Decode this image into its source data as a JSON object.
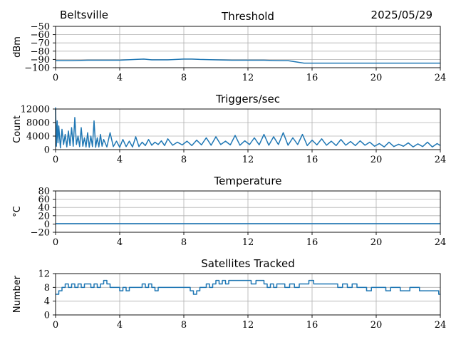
{
  "header": {
    "station": "Beltsville",
    "date": "2025/05/29"
  },
  "colors": {
    "line": "#1f77b4",
    "grid": "#b0b0b0",
    "axis": "#000000"
  },
  "chart_data": [
    {
      "type": "line",
      "title": "Threshold",
      "xlabel": "",
      "ylabel": "dBm",
      "xlim": [
        0,
        24
      ],
      "ylim": [
        -100,
        -50
      ],
      "xticks": [
        0,
        4,
        8,
        12,
        16,
        20,
        24
      ],
      "yticks": [
        -50,
        -60,
        -70,
        -80,
        -90,
        -100
      ],
      "grid": true,
      "series": [
        {
          "x": [
            0,
            1,
            2,
            3,
            4,
            5,
            5.5,
            6,
            7,
            8,
            8.5,
            9,
            10,
            11,
            12,
            13,
            14,
            14.5,
            15,
            15.5,
            16,
            17,
            18,
            19,
            20,
            21,
            22,
            23,
            24
          ],
          "y": [
            -91.5,
            -91.5,
            -91,
            -91,
            -91,
            -90,
            -89.5,
            -90.5,
            -90.5,
            -89.5,
            -89.5,
            -90,
            -90.5,
            -91,
            -91,
            -91,
            -91.5,
            -91.5,
            -93,
            -94.5,
            -94.5,
            -94.5,
            -94.5,
            -94.5,
            -94.5,
            -94.5,
            -94.5,
            -94.5,
            -94.5
          ]
        }
      ]
    },
    {
      "type": "line",
      "title": "Triggers/sec",
      "xlabel": "",
      "ylabel": "Count",
      "xlim": [
        0,
        24
      ],
      "ylim": [
        0,
        12000
      ],
      "xticks": [
        0,
        4,
        8,
        12,
        16,
        20,
        24
      ],
      "yticks": [
        0,
        4000,
        8000,
        12000
      ],
      "grid": true,
      "series": [
        {
          "x": [
            0,
            0.05,
            0.1,
            0.15,
            0.2,
            0.3,
            0.4,
            0.5,
            0.6,
            0.7,
            0.8,
            0.9,
            1.0,
            1.1,
            1.2,
            1.3,
            1.4,
            1.5,
            1.6,
            1.7,
            1.8,
            1.9,
            2.0,
            2.1,
            2.2,
            2.3,
            2.4,
            2.5,
            2.6,
            2.7,
            2.8,
            2.9,
            3.0,
            3.2,
            3.4,
            3.6,
            3.8,
            4.0,
            4.2,
            4.4,
            4.6,
            4.8,
            5.0,
            5.2,
            5.4,
            5.6,
            5.8,
            6.0,
            6.2,
            6.4,
            6.6,
            6.8,
            7.0,
            7.3,
            7.6,
            7.9,
            8.2,
            8.5,
            8.8,
            9.1,
            9.4,
            9.7,
            10.0,
            10.3,
            10.6,
            10.9,
            11.2,
            11.5,
            11.8,
            12.1,
            12.4,
            12.7,
            13.0,
            13.3,
            13.6,
            13.9,
            14.2,
            14.5,
            14.8,
            15.1,
            15.4,
            15.7,
            16.0,
            16.3,
            16.6,
            16.9,
            17.2,
            17.5,
            17.8,
            18.1,
            18.4,
            18.7,
            19.0,
            19.3,
            19.6,
            19.9,
            20.2,
            20.5,
            20.8,
            21.1,
            21.4,
            21.7,
            22.0,
            22.3,
            22.6,
            22.9,
            23.2,
            23.5,
            23.8,
            24.0
          ],
          "y": [
            12500,
            1000,
            8500,
            2000,
            7000,
            500,
            6000,
            1500,
            4500,
            800,
            5500,
            1200,
            6500,
            1000,
            9500,
            1500,
            4000,
            900,
            6500,
            1000,
            3500,
            800,
            5000,
            700,
            4000,
            900,
            8500,
            700,
            3500,
            800,
            4500,
            1000,
            3000,
            800,
            5000,
            900,
            2500,
            700,
            3000,
            900,
            2500,
            800,
            3800,
            900,
            2200,
            1200,
            3000,
            1300,
            2200,
            1500,
            2600,
            1200,
            3200,
            1300,
            2200,
            1400,
            2500,
            1200,
            2800,
            1400,
            3500,
            1300,
            3800,
            1500,
            2500,
            1400,
            4200,
            1300,
            2600,
            1500,
            3500,
            1400,
            4500,
            1300,
            3800,
            1500,
            5000,
            1300,
            3500,
            1500,
            4500,
            1200,
            2800,
            1400,
            3200,
            1300,
            2500,
            1200,
            3000,
            1300,
            2400,
            1200,
            2600,
            1300,
            2200,
            1000,
            1800,
            800,
            2200,
            900,
            1600,
            1000,
            2000,
            800,
            1700,
            900,
            2200,
            800,
            1800,
            1200
          ]
        }
      ]
    },
    {
      "type": "line",
      "title": "Temperature",
      "xlabel": "",
      "ylabel": "°C",
      "xlim": [
        0,
        24
      ],
      "ylim": [
        -20,
        80
      ],
      "xticks": [
        0,
        4,
        8,
        12,
        16,
        20,
        24
      ],
      "yticks": [
        -20,
        0,
        20,
        40,
        60,
        80
      ],
      "grid": true,
      "series": [
        {
          "x": [
            0,
            24
          ],
          "y": [
            1,
            1
          ]
        }
      ]
    },
    {
      "type": "line",
      "title": "Satellites Tracked",
      "xlabel": "",
      "ylabel": "Number",
      "xlim": [
        0,
        24
      ],
      "ylim": [
        0,
        12
      ],
      "xticks": [
        0,
        4,
        8,
        12,
        16,
        20,
        24
      ],
      "yticks": [
        0,
        4,
        8,
        12
      ],
      "grid": true,
      "step": true,
      "series": [
        {
          "x": [
            0,
            0.2,
            0.4,
            0.6,
            0.8,
            1.0,
            1.2,
            1.4,
            1.6,
            1.8,
            2.0,
            2.2,
            2.4,
            2.6,
            2.8,
            3.0,
            3.2,
            3.4,
            3.6,
            3.8,
            4.0,
            4.2,
            4.4,
            4.6,
            4.8,
            5.0,
            5.2,
            5.4,
            5.6,
            5.8,
            6.0,
            6.2,
            6.4,
            6.6,
            6.8,
            7.0,
            7.5,
            8.0,
            8.2,
            8.4,
            8.6,
            8.8,
            9.0,
            9.2,
            9.4,
            9.6,
            9.8,
            10.0,
            10.2,
            10.4,
            10.6,
            10.8,
            11.0,
            11.5,
            12.0,
            12.2,
            12.5,
            13.0,
            13.2,
            13.4,
            13.6,
            13.8,
            14.0,
            14.3,
            14.6,
            14.9,
            15.2,
            15.5,
            15.8,
            16.1,
            16.4,
            16.7,
            17.0,
            17.3,
            17.6,
            17.9,
            18.2,
            18.5,
            18.8,
            19.1,
            19.4,
            19.7,
            20.0,
            20.3,
            20.6,
            20.9,
            21.2,
            21.5,
            21.8,
            22.1,
            22.4,
            22.7,
            23.0,
            23.3,
            23.6,
            23.9,
            24.0
          ],
          "y": [
            6,
            7,
            8,
            9,
            8,
            9,
            8,
            9,
            8,
            9,
            9,
            8,
            9,
            8,
            9,
            10,
            9,
            8,
            8,
            8,
            7,
            8,
            7,
            8,
            8,
            8,
            8,
            9,
            8,
            9,
            8,
            7,
            8,
            8,
            8,
            8,
            8,
            8,
            8,
            7,
            6,
            7,
            8,
            8,
            9,
            8,
            9,
            10,
            9,
            10,
            9,
            10,
            10,
            10,
            10,
            9,
            10,
            9,
            8,
            9,
            8,
            9,
            9,
            8,
            9,
            8,
            9,
            9,
            10,
            9,
            9,
            9,
            9,
            9,
            8,
            9,
            8,
            9,
            8,
            8,
            7,
            8,
            8,
            8,
            7,
            8,
            8,
            7,
            7,
            8,
            8,
            7,
            7,
            7,
            7,
            6,
            6
          ]
        }
      ]
    }
  ]
}
